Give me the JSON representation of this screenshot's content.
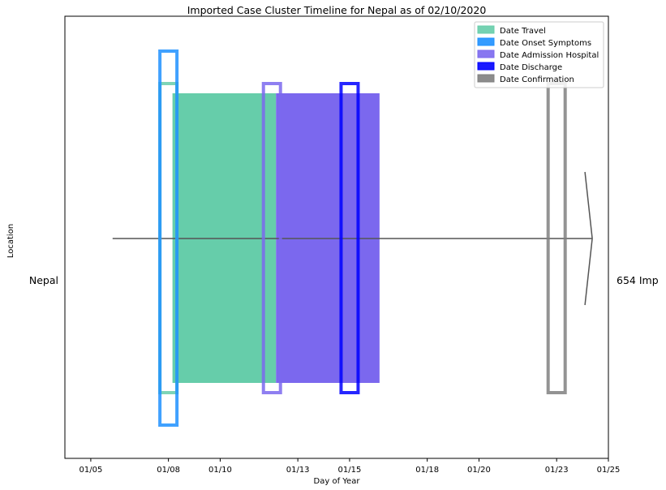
{
  "chart_data": {
    "type": "timeline",
    "title": "Imported Case Cluster Timeline for Nepal as of 02/10/2020",
    "xlabel": "Day of Year",
    "ylabel": "Location",
    "x_ticks": [
      {
        "day": 5,
        "label": "01/05"
      },
      {
        "day": 8,
        "label": "01/08"
      },
      {
        "day": 10,
        "label": "01/10"
      },
      {
        "day": 13,
        "label": "01/13"
      },
      {
        "day": 15,
        "label": "01/15"
      },
      {
        "day": 18,
        "label": "01/18"
      },
      {
        "day": 20,
        "label": "01/20"
      },
      {
        "day": 23,
        "label": "01/23"
      },
      {
        "day": 25,
        "label": "01/25"
      }
    ],
    "xlim": [
      "01/04",
      "01/25"
    ],
    "ylim": [
      -1.1,
      1.1
    ],
    "location_label": "Nepal",
    "right_label": "654 Imp",
    "legend_position": "top-right",
    "legend": [
      {
        "label": "Date Travel",
        "color": "#66cdaa"
      },
      {
        "label": "Date Onset Symptoms",
        "color": "#1e90ff"
      },
      {
        "label": "Date Admission Hospital",
        "color": "#7b68ee"
      },
      {
        "label": "Date Discharge",
        "color": "#0000ff"
      },
      {
        "label": "Date Confirmation",
        "color": "#808080"
      }
    ],
    "filled_spans": [
      {
        "series": "Date Travel",
        "start": "01/08",
        "end": "01/12",
        "color": "#66cdaa"
      },
      {
        "series": "Date Admission Hospital",
        "start": "01/12",
        "end": "01/16",
        "color": "#7b68ee"
      }
    ],
    "event_boxes": [
      {
        "series": "Date Travel",
        "date": "01/08",
        "color": "#66cdaa",
        "tall": false
      },
      {
        "series": "Date Onset Symptoms",
        "date": "01/08",
        "color": "#1e90ff",
        "tall": true
      },
      {
        "series": "Date Admission Hospital",
        "date": "01/12",
        "color": "#7b68ee",
        "tall": false
      },
      {
        "series": "Date Discharge",
        "date": "01/15",
        "color": "#0000ff",
        "tall": false
      },
      {
        "series": "Date Confirmation",
        "date": "01/23",
        "color": "#808080",
        "tall": false
      }
    ],
    "timeline_arrow": {
      "start": "01/06",
      "end": "01/24",
      "color": "#555555"
    }
  }
}
